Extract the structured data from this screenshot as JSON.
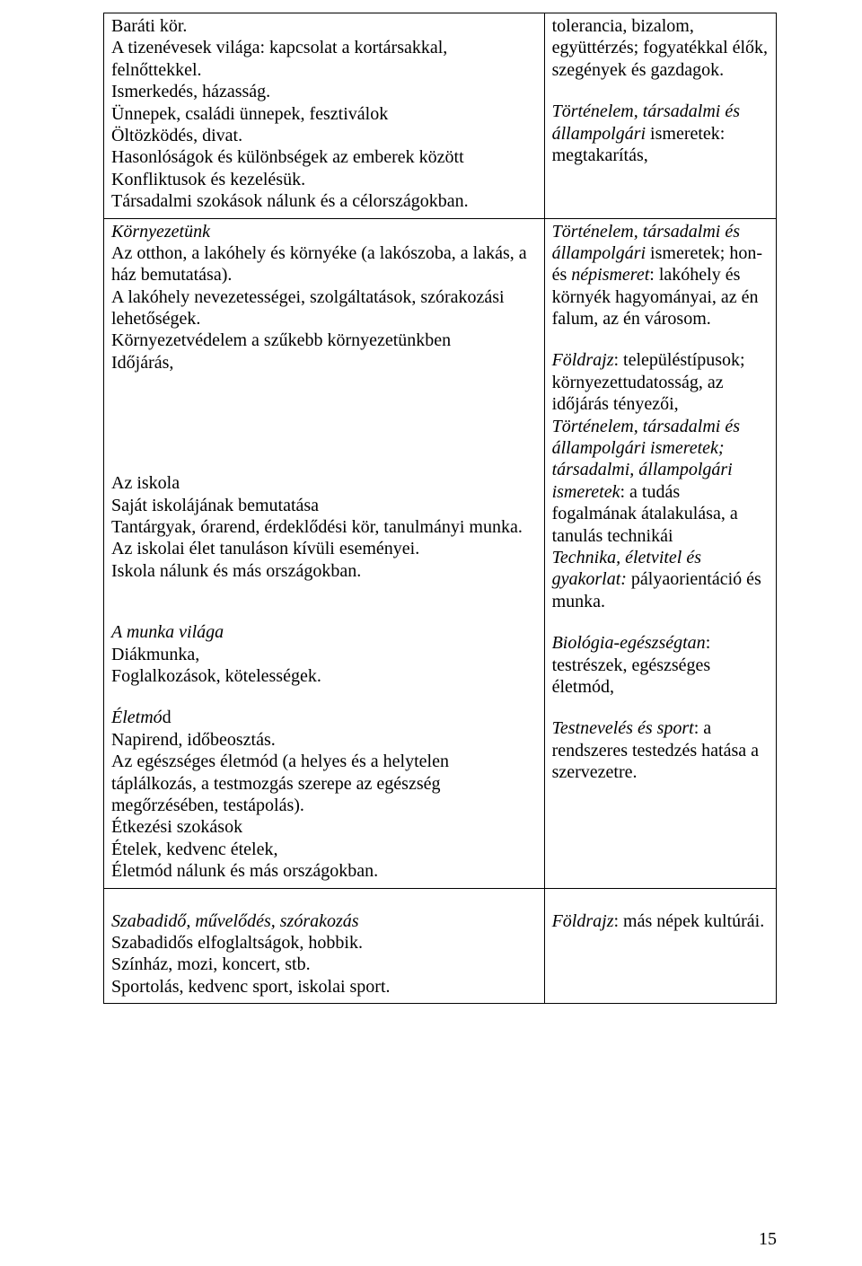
{
  "page_number": "15",
  "r1": {
    "left": {
      "l1": "Baráti kör.",
      "l2": "A tizenévesek világa: kapcsolat a kortársakkal, felnőttekkel.",
      "l3": "Ismerkedés, házasság.",
      "l4": "Ünnepek, családi ünnepek, fesztiválok",
      "l5": "Öltözködés, divat.",
      "l6": "Hasonlóságok és különbségek az emberek között",
      "l7": "Konfliktusok és kezelésük.",
      "l8": "Társadalmi szokások nálunk és a célországokban."
    },
    "right": {
      "l1": "tolerancia, bizalom, együttérzés; fogyatékkal élők, szegények és gazdagok.",
      "l2i": "Történelem, társadalmi és állampolgári ",
      "l2r": "ismeretek: megtakarítás,"
    }
  },
  "r2": {
    "left": {
      "h1i": "Környezetünk",
      "l1": "Az otthon, a lakóhely és környéke (a lakószoba, a lakás, a ház bemutatása).",
      "l2": "A lakóhely nevezetességei, szolgáltatások, szórakozási lehetőségek.",
      "l3": "Környezetvédelem a szűkebb környezetünkben",
      "l4": "Időjárás,",
      "h2": "Az iskola",
      "l5": "Saját iskolájának bemutatása",
      "l6": "Tantárgyak, órarend, érdeklődési kör, tanulmányi munka.",
      "l7": "Az iskolai élet tanuláson kívüli eseményei.",
      "l8": "Iskola nálunk és más országokban.",
      "h3i": "A munka világa",
      "l9": "Diákmunka,",
      "l10": "Foglalkozások, kötelességek.",
      "h4i": "Életmó",
      "h4r": "d",
      "l11": "Napirend, időbeosztás.",
      "l12": "Az egészséges életmód (a helyes és a helytelen táplálkozás, a testmozgás szerepe az egészség megőrzésében, testápolás).",
      "l13": "Étkezési szokások",
      "l14": "Ételek, kedvenc ételek,",
      "l15": "Életmód nálunk és más országokban."
    },
    "right": {
      "b1i": "Történelem, társadalmi és állampolgári ",
      "b1r1": "ismeretek; hon- és ",
      "b1i2": "népismeret",
      "b1r2": ": lakóhely és környék hagyományai, az én falum, az én városom.",
      "b2i": "Földrajz",
      "b2r": ": településtípusok; környezettudatosság, az időjárás tényezői,",
      "b3i": "Történelem, társadalmi és állampolgári ismeretek; társadalmi, állampolgári ismeretek",
      "b3r": ": a tudás fogalmának átalakulása, a tanulás technikái",
      "b4i": "Technika, életvitel és gyakorlat:",
      "b4r": " pályaorientáció és munka.",
      "b5i": "Biológia-egészségtan",
      "b5r": ": testrészek, egészséges életmód,",
      "b5i2": "Testnevelés és sport",
      "b5r2": ": a rendszeres testedzés hatása a szervezetre."
    }
  },
  "r3": {
    "left": {
      "h1i": "Szabadidő, művelődés, szórakozás",
      "l1": "Szabadidős elfoglaltságok, hobbik.",
      "l2": "Színház, mozi, koncert, stb.",
      "l3": "Sportolás, kedvenc sport, iskolai sport."
    },
    "right": {
      "l1i": "Földrajz",
      "l1r": ": más népek kultúrái."
    }
  }
}
